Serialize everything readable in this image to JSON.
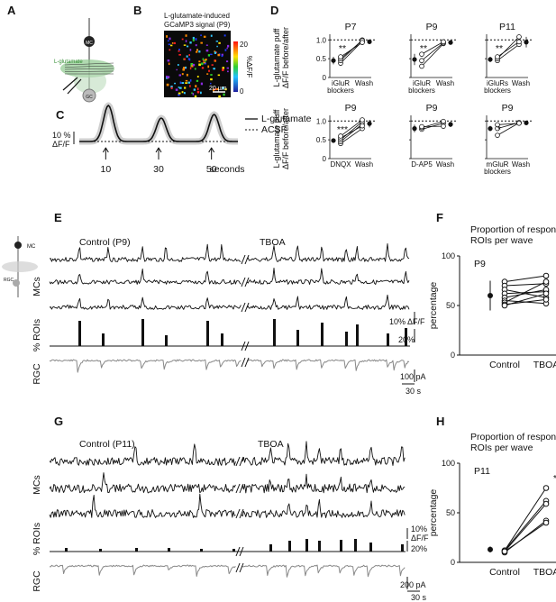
{
  "panels": {
    "a": "A",
    "b": "B",
    "c": "C",
    "d": "D",
    "e": "E",
    "f": "F",
    "g": "G",
    "h": "H"
  },
  "panel_a": {
    "mc": "MC",
    "glutamate": "L-glutamate",
    "gc": "GC"
  },
  "panel_b": {
    "title_1": "L-glutamate-induced",
    "title_2": "GCaMP3 signal (P9)",
    "colorbar_max": "20",
    "colorbar_min": "0",
    "colorbar_label": "%ΔF/F",
    "scalebar": "20 µm"
  },
  "panel_c": {
    "ylabel_1": "10 %",
    "ylabel_2": "ΔF/F",
    "legend_solid": "L-glutamate",
    "legend_dash": "ACSF",
    "ticks": [
      "10",
      "30",
      "50"
    ],
    "xunit": "seconds"
  },
  "panel_d": {
    "ylabel_1": "L-glutamate puff",
    "ylabel_2": "ΔF/F before/after",
    "yticks": [
      "0",
      "0.5",
      "1.0"
    ],
    "subplots": [
      {
        "title": "P7",
        "drug_1": "iGluR",
        "drug_2": "blockers",
        "wash": "Wash",
        "sig": "**"
      },
      {
        "title": "P9",
        "drug_1": "iGluR",
        "drug_2": "blockers",
        "wash": "Wash",
        "sig": "**"
      },
      {
        "title": "P11",
        "drug_1": "iGluRs",
        "drug_2": "blockers",
        "wash": "Wash",
        "sig": "**"
      },
      {
        "title": "P9",
        "drug_1": "DNQX",
        "drug_2": "",
        "wash": "Wash",
        "sig": "***"
      },
      {
        "title": "P9",
        "drug_1": "D-AP5",
        "drug_2": "",
        "wash": "Wash",
        "sig": ""
      },
      {
        "title": "P9",
        "drug_1": "mGluR",
        "drug_2": "blockers",
        "wash": "Wash",
        "sig": "*"
      }
    ]
  },
  "panel_e": {
    "control": "Control (P9)",
    "tboa": "TBOA",
    "mc_label": "MC",
    "rgc_label": "RGC",
    "mcs": "MCs",
    "rois": "% ROIs",
    "rgc": "RGC",
    "sb_df": "10% ΔF/F",
    "sb_roi": "20%",
    "sb_pa": "100 pA",
    "sb_s": "30 s"
  },
  "panel_f": {
    "title_1": "Proportion of responsive",
    "title_2": "ROIs per wave",
    "tag": "P9",
    "ylabel": "percentage",
    "yticks": [
      "0",
      "50",
      "100"
    ],
    "xticks": [
      "Control",
      "TBOA"
    ]
  },
  "panel_g": {
    "control": "Control (P11)",
    "tboa": "TBOA",
    "mcs": "MCs",
    "rois": "% ROIs",
    "rgc": "RGC",
    "sb_df_1": "10%",
    "sb_df_2": "ΔF/F",
    "sb_roi": "20%",
    "sb_pa": "200 pA",
    "sb_s": "30 s"
  },
  "panel_h": {
    "title_1": "Proportion of responsive",
    "title_2": "ROIs per wave",
    "tag": "P11",
    "ylabel": "percentage",
    "yticks": [
      "0",
      "50",
      "100"
    ],
    "xticks": [
      "Control",
      "TBOA"
    ],
    "sig": "***"
  },
  "chart_data": [
    {
      "type": "line",
      "id": "C",
      "x": [
        0,
        10,
        20,
        30,
        40,
        50,
        60
      ],
      "series": [
        {
          "name": "L-glutamate",
          "peaks": [
            {
              "x": 10,
              "y": 10
            },
            {
              "x": 30,
              "y": 6.5
            },
            {
              "x": 50,
              "y": 7.5
            }
          ]
        },
        {
          "name": "ACSF",
          "values": [
            0,
            0,
            0,
            0,
            0,
            0,
            0
          ]
        }
      ],
      "stimulus_times": [
        10,
        30,
        50
      ]
    },
    {
      "type": "scatter",
      "id": "D",
      "ylim": [
        0,
        1.15
      ],
      "reference_line": 1.0,
      "subplots": [
        {
          "title": "P7",
          "categories": [
            "iGluR blockers",
            "Wash"
          ],
          "mean": [
            0.45,
            0.95
          ],
          "err": [
            0.1,
            0.06
          ],
          "pairs": [
            [
              0.38,
              0.96
            ],
            [
              0.45,
              1.0
            ],
            [
              0.5,
              0.98
            ],
            [
              0.55,
              0.93
            ]
          ]
        },
        {
          "title": "P9",
          "categories": [
            "iGluR blockers",
            "Wash"
          ],
          "mean": [
            0.48,
            0.93
          ],
          "err": [
            0.15,
            0.03
          ],
          "pairs": [
            [
              0.3,
              0.9
            ],
            [
              0.45,
              0.92
            ],
            [
              0.62,
              0.95
            ]
          ]
        },
        {
          "title": "P11",
          "categories": [
            "iGluRs blockers",
            "Wash"
          ],
          "mean": [
            0.48,
            0.94
          ],
          "err": [
            0.07,
            0.14
          ],
          "pairs": [
            [
              0.45,
              0.88
            ],
            [
              0.5,
              1.08
            ],
            [
              0.55,
              0.95
            ]
          ]
        },
        {
          "title": "P9",
          "categories": [
            "DNQX",
            "Wash"
          ],
          "mean": [
            0.48,
            0.93
          ],
          "err": [
            0.06,
            0.1
          ],
          "pairs": [
            [
              0.4,
              0.8
            ],
            [
              0.45,
              0.92
            ],
            [
              0.5,
              0.98
            ],
            [
              0.55,
              0.87
            ],
            [
              0.6,
              1.03
            ]
          ]
        },
        {
          "title": "P9",
          "categories": [
            "D-AP5",
            "Wash"
          ],
          "mean": [
            0.8,
            0.91
          ],
          "err": [
            0.1,
            0.07
          ],
          "pairs": [
            [
              0.78,
              0.94
            ],
            [
              0.82,
              0.99
            ],
            [
              0.85,
              0.86
            ]
          ]
        },
        {
          "title": "P9",
          "categories": [
            "mGluR blockers",
            "Wash"
          ],
          "mean": [
            0.8,
            0.95
          ],
          "err": [
            0.07,
            0.03
          ],
          "pairs": [
            [
              0.62,
              0.95
            ],
            [
              0.8,
              0.96
            ],
            [
              0.9,
              0.94
            ]
          ]
        }
      ]
    },
    {
      "type": "scatter",
      "id": "F",
      "categories": [
        "Control",
        "TBOA"
      ],
      "ylim": [
        0,
        100
      ],
      "mean": [
        60,
        66
      ],
      "err": [
        15,
        15
      ],
      "pairs": [
        [
          74,
          80
        ],
        [
          70,
          72
        ],
        [
          66,
          58
        ],
        [
          62,
          64
        ],
        [
          58,
          66
        ],
        [
          55,
          52
        ],
        [
          53,
          74
        ],
        [
          51,
          56
        ],
        [
          50,
          62
        ]
      ]
    },
    {
      "type": "scatter",
      "id": "H",
      "categories": [
        "Control",
        "TBOA"
      ],
      "ylim": [
        0,
        100
      ],
      "mean": [
        13,
        58
      ],
      "err": [
        3,
        14
      ],
      "pairs": [
        [
          12,
          75
        ],
        [
          12,
          62
        ],
        [
          11,
          59
        ],
        [
          10,
          42
        ],
        [
          11,
          40
        ]
      ]
    }
  ]
}
